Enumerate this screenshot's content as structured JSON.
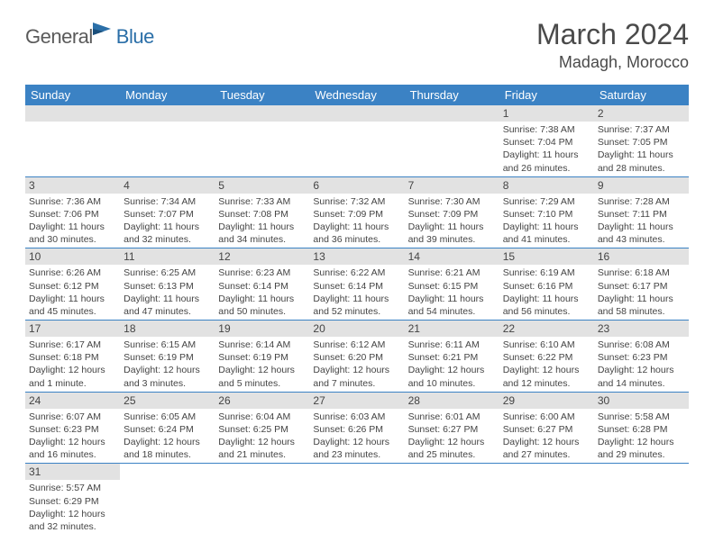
{
  "logo": {
    "part1": "General",
    "part2": "Blue"
  },
  "title": "March 2024",
  "location": "Madagh, Morocco",
  "weekdays": [
    "Sunday",
    "Monday",
    "Tuesday",
    "Wednesday",
    "Thursday",
    "Friday",
    "Saturday"
  ],
  "colors": {
    "header_bg": "#3b82c4",
    "daybar_bg": "#e2e2e2",
    "row_border": "#3b82c4",
    "text": "#444444",
    "logo_gray": "#5a5a5a",
    "logo_blue": "#2b6fa8"
  },
  "weeks": [
    [
      {
        "blank": true
      },
      {
        "blank": true
      },
      {
        "blank": true
      },
      {
        "blank": true
      },
      {
        "blank": true
      },
      {
        "day": "1",
        "sunrise": "Sunrise: 7:38 AM",
        "sunset": "Sunset: 7:04 PM",
        "dl1": "Daylight: 11 hours",
        "dl2": "and 26 minutes."
      },
      {
        "day": "2",
        "sunrise": "Sunrise: 7:37 AM",
        "sunset": "Sunset: 7:05 PM",
        "dl1": "Daylight: 11 hours",
        "dl2": "and 28 minutes."
      }
    ],
    [
      {
        "day": "3",
        "sunrise": "Sunrise: 7:36 AM",
        "sunset": "Sunset: 7:06 PM",
        "dl1": "Daylight: 11 hours",
        "dl2": "and 30 minutes."
      },
      {
        "day": "4",
        "sunrise": "Sunrise: 7:34 AM",
        "sunset": "Sunset: 7:07 PM",
        "dl1": "Daylight: 11 hours",
        "dl2": "and 32 minutes."
      },
      {
        "day": "5",
        "sunrise": "Sunrise: 7:33 AM",
        "sunset": "Sunset: 7:08 PM",
        "dl1": "Daylight: 11 hours",
        "dl2": "and 34 minutes."
      },
      {
        "day": "6",
        "sunrise": "Sunrise: 7:32 AM",
        "sunset": "Sunset: 7:09 PM",
        "dl1": "Daylight: 11 hours",
        "dl2": "and 36 minutes."
      },
      {
        "day": "7",
        "sunrise": "Sunrise: 7:30 AM",
        "sunset": "Sunset: 7:09 PM",
        "dl1": "Daylight: 11 hours",
        "dl2": "and 39 minutes."
      },
      {
        "day": "8",
        "sunrise": "Sunrise: 7:29 AM",
        "sunset": "Sunset: 7:10 PM",
        "dl1": "Daylight: 11 hours",
        "dl2": "and 41 minutes."
      },
      {
        "day": "9",
        "sunrise": "Sunrise: 7:28 AM",
        "sunset": "Sunset: 7:11 PM",
        "dl1": "Daylight: 11 hours",
        "dl2": "and 43 minutes."
      }
    ],
    [
      {
        "day": "10",
        "sunrise": "Sunrise: 6:26 AM",
        "sunset": "Sunset: 6:12 PM",
        "dl1": "Daylight: 11 hours",
        "dl2": "and 45 minutes."
      },
      {
        "day": "11",
        "sunrise": "Sunrise: 6:25 AM",
        "sunset": "Sunset: 6:13 PM",
        "dl1": "Daylight: 11 hours",
        "dl2": "and 47 minutes."
      },
      {
        "day": "12",
        "sunrise": "Sunrise: 6:23 AM",
        "sunset": "Sunset: 6:14 PM",
        "dl1": "Daylight: 11 hours",
        "dl2": "and 50 minutes."
      },
      {
        "day": "13",
        "sunrise": "Sunrise: 6:22 AM",
        "sunset": "Sunset: 6:14 PM",
        "dl1": "Daylight: 11 hours",
        "dl2": "and 52 minutes."
      },
      {
        "day": "14",
        "sunrise": "Sunrise: 6:21 AM",
        "sunset": "Sunset: 6:15 PM",
        "dl1": "Daylight: 11 hours",
        "dl2": "and 54 minutes."
      },
      {
        "day": "15",
        "sunrise": "Sunrise: 6:19 AM",
        "sunset": "Sunset: 6:16 PM",
        "dl1": "Daylight: 11 hours",
        "dl2": "and 56 minutes."
      },
      {
        "day": "16",
        "sunrise": "Sunrise: 6:18 AM",
        "sunset": "Sunset: 6:17 PM",
        "dl1": "Daylight: 11 hours",
        "dl2": "and 58 minutes."
      }
    ],
    [
      {
        "day": "17",
        "sunrise": "Sunrise: 6:17 AM",
        "sunset": "Sunset: 6:18 PM",
        "dl1": "Daylight: 12 hours",
        "dl2": "and 1 minute."
      },
      {
        "day": "18",
        "sunrise": "Sunrise: 6:15 AM",
        "sunset": "Sunset: 6:19 PM",
        "dl1": "Daylight: 12 hours",
        "dl2": "and 3 minutes."
      },
      {
        "day": "19",
        "sunrise": "Sunrise: 6:14 AM",
        "sunset": "Sunset: 6:19 PM",
        "dl1": "Daylight: 12 hours",
        "dl2": "and 5 minutes."
      },
      {
        "day": "20",
        "sunrise": "Sunrise: 6:12 AM",
        "sunset": "Sunset: 6:20 PM",
        "dl1": "Daylight: 12 hours",
        "dl2": "and 7 minutes."
      },
      {
        "day": "21",
        "sunrise": "Sunrise: 6:11 AM",
        "sunset": "Sunset: 6:21 PM",
        "dl1": "Daylight: 12 hours",
        "dl2": "and 10 minutes."
      },
      {
        "day": "22",
        "sunrise": "Sunrise: 6:10 AM",
        "sunset": "Sunset: 6:22 PM",
        "dl1": "Daylight: 12 hours",
        "dl2": "and 12 minutes."
      },
      {
        "day": "23",
        "sunrise": "Sunrise: 6:08 AM",
        "sunset": "Sunset: 6:23 PM",
        "dl1": "Daylight: 12 hours",
        "dl2": "and 14 minutes."
      }
    ],
    [
      {
        "day": "24",
        "sunrise": "Sunrise: 6:07 AM",
        "sunset": "Sunset: 6:23 PM",
        "dl1": "Daylight: 12 hours",
        "dl2": "and 16 minutes."
      },
      {
        "day": "25",
        "sunrise": "Sunrise: 6:05 AM",
        "sunset": "Sunset: 6:24 PM",
        "dl1": "Daylight: 12 hours",
        "dl2": "and 18 minutes."
      },
      {
        "day": "26",
        "sunrise": "Sunrise: 6:04 AM",
        "sunset": "Sunset: 6:25 PM",
        "dl1": "Daylight: 12 hours",
        "dl2": "and 21 minutes."
      },
      {
        "day": "27",
        "sunrise": "Sunrise: 6:03 AM",
        "sunset": "Sunset: 6:26 PM",
        "dl1": "Daylight: 12 hours",
        "dl2": "and 23 minutes."
      },
      {
        "day": "28",
        "sunrise": "Sunrise: 6:01 AM",
        "sunset": "Sunset: 6:27 PM",
        "dl1": "Daylight: 12 hours",
        "dl2": "and 25 minutes."
      },
      {
        "day": "29",
        "sunrise": "Sunrise: 6:00 AM",
        "sunset": "Sunset: 6:27 PM",
        "dl1": "Daylight: 12 hours",
        "dl2": "and 27 minutes."
      },
      {
        "day": "30",
        "sunrise": "Sunrise: 5:58 AM",
        "sunset": "Sunset: 6:28 PM",
        "dl1": "Daylight: 12 hours",
        "dl2": "and 29 minutes."
      }
    ],
    [
      {
        "day": "31",
        "sunrise": "Sunrise: 5:57 AM",
        "sunset": "Sunset: 6:29 PM",
        "dl1": "Daylight: 12 hours",
        "dl2": "and 32 minutes."
      },
      {
        "blank": true,
        "nobar": true
      },
      {
        "blank": true,
        "nobar": true
      },
      {
        "blank": true,
        "nobar": true
      },
      {
        "blank": true,
        "nobar": true
      },
      {
        "blank": true,
        "nobar": true
      },
      {
        "blank": true,
        "nobar": true
      }
    ]
  ]
}
